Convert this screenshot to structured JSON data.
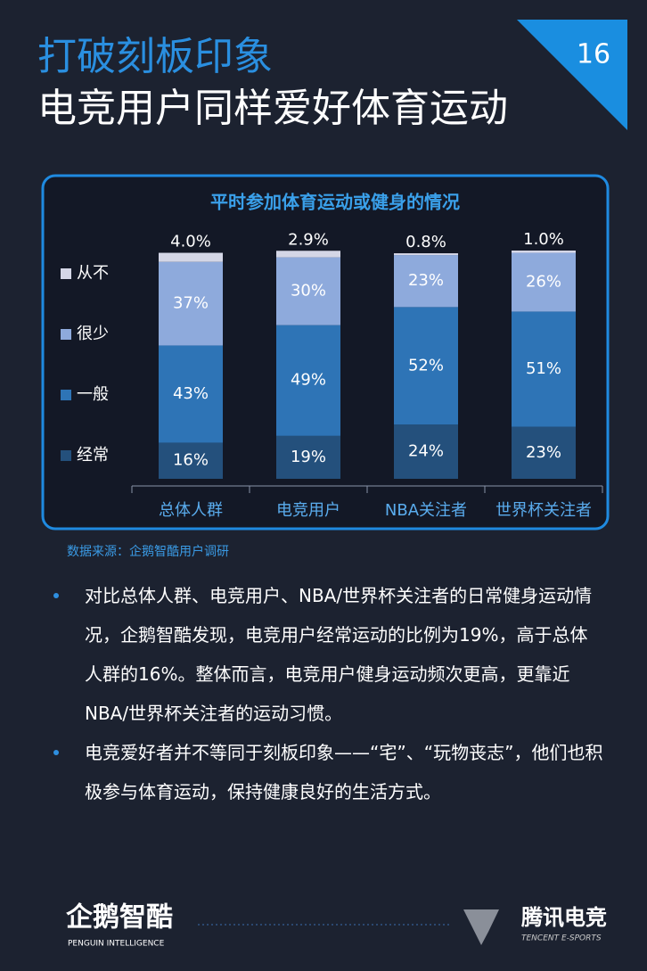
{
  "header": {
    "title_line1": "打破刻板印象",
    "title_line2": "电竞用户同样爱好体育运动",
    "page_number": "16"
  },
  "chart_data": {
    "type": "bar",
    "stacked": true,
    "title": "平时参加体育运动或健身的情况",
    "categories": [
      "总体人群",
      "电竞用户",
      "NBA关注者",
      "世界杯关注者"
    ],
    "legend": "left",
    "series": [
      {
        "name": "经常",
        "color": "#24507c",
        "values": [
          16,
          19,
          24,
          23
        ],
        "value_labels": [
          "16%",
          "19%",
          "24%",
          "23%"
        ]
      },
      {
        "name": "一般",
        "color": "#2e74b6",
        "values": [
          43,
          49,
          52,
          51
        ],
        "value_labels": [
          "43%",
          "49%",
          "52%",
          "51%"
        ]
      },
      {
        "name": "很少",
        "color": "#8eaadc",
        "values": [
          37,
          30,
          23,
          26
        ],
        "value_labels": [
          "37%",
          "30%",
          "23%",
          "26%"
        ]
      },
      {
        "name": "从不",
        "color": "#d4d6e6",
        "values": [
          4,
          2.9,
          0.8,
          1
        ],
        "value_labels": [
          "4.0%",
          "2.9%",
          "0.8%",
          "1.0%"
        ]
      }
    ]
  },
  "source": "数据来源：企鹅智酷用户调研",
  "bullets": [
    "对比总体人群、电竞用户、NBA/世界杯关注者的日常健身运动情况，企鹅智酷发现，电竞用户经常运动的比例为19%，高于总体人群的16%。整体而言，电竞用户健身运动频次更高，更靠近NBA/世界杯关注者的运动习惯。",
    "电竞爱好者并不等同于刻板印象——“宅”、“玩物丧志”，他们也积极参与体育运动，保持健康良好的生活方式。"
  ],
  "footer": {
    "left_logo": "企鹅智酷",
    "left_sub": "PENGUIN INTELLIGENCE",
    "right_logo": "腾讯电竞",
    "right_sub": "TENCENT E-SPORTS"
  }
}
